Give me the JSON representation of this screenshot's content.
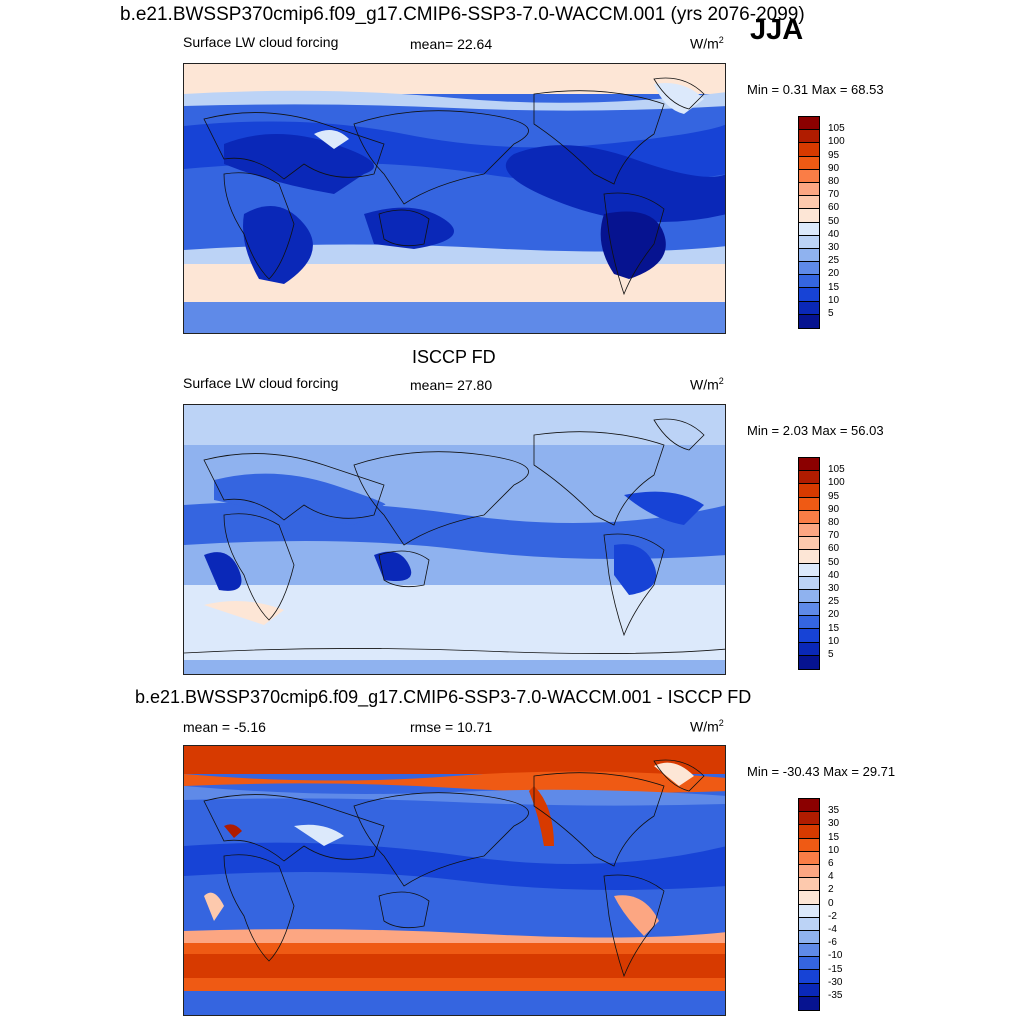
{
  "main_title": "b.e21.BWSSP370cmip6.f09_g17.CMIP6-SSP3-7.0-WACCM.001 (yrs 2076-2099)",
  "season": "JJA",
  "panels": [
    {
      "title": "",
      "left_label": "Surface LW cloud forcing",
      "mid_label": "mean=  22.64",
      "units": "W/m",
      "units_exp": "2",
      "minmax": "Min =   0.31 Max =  68.53",
      "levels": [
        "105",
        "100",
        "95",
        "90",
        "80",
        "70",
        "60",
        "50",
        "40",
        "30",
        "25",
        "20",
        "15",
        "10",
        "5"
      ],
      "colors": [
        "#8b0000",
        "#b01c00",
        "#d73a00",
        "#ef5a14",
        "#fa7d46",
        "#fca682",
        "#fdc9ad",
        "#fde6d6",
        "#dce9fb",
        "#bcd3f6",
        "#8fb2ef",
        "#5f8ae8",
        "#3565e0",
        "#1743d6",
        "#0a28b8",
        "#061390"
      ]
    },
    {
      "title": "ISCCP FD",
      "left_label": "Surface LW cloud forcing",
      "mid_label": "mean=  27.80",
      "units": "W/m",
      "units_exp": "2",
      "minmax": "Min =   2.03 Max =  56.03",
      "levels": [
        "105",
        "100",
        "95",
        "90",
        "80",
        "70",
        "60",
        "50",
        "40",
        "30",
        "25",
        "20",
        "15",
        "10",
        "5"
      ],
      "colors": [
        "#8b0000",
        "#b01c00",
        "#d73a00",
        "#ef5a14",
        "#fa7d46",
        "#fca682",
        "#fdc9ad",
        "#fde6d6",
        "#dce9fb",
        "#bcd3f6",
        "#8fb2ef",
        "#5f8ae8",
        "#3565e0",
        "#1743d6",
        "#0a28b8",
        "#061390"
      ]
    },
    {
      "title": "b.e21.BWSSP370cmip6.f09_g17.CMIP6-SSP3-7.0-WACCM.001 - ISCCP FD",
      "left_label": "mean =  -5.16",
      "mid_label": "rmse =  10.71",
      "units": "W/m",
      "units_exp": "2",
      "minmax": "Min = -30.43 Max =  29.71",
      "levels": [
        "35",
        "30",
        "15",
        "10",
        "6",
        "4",
        "2",
        "0",
        "-2",
        "-4",
        "-6",
        "-10",
        "-15",
        "-30",
        "-35"
      ],
      "colors": [
        "#8b0000",
        "#b01c00",
        "#d73a00",
        "#ef5a14",
        "#fa7d46",
        "#fca682",
        "#fdc9ad",
        "#fde6d6",
        "#dce9fb",
        "#bcd3f6",
        "#8fb2ef",
        "#5f8ae8",
        "#3565e0",
        "#1743d6",
        "#0a28b8",
        "#061390"
      ]
    }
  ]
}
